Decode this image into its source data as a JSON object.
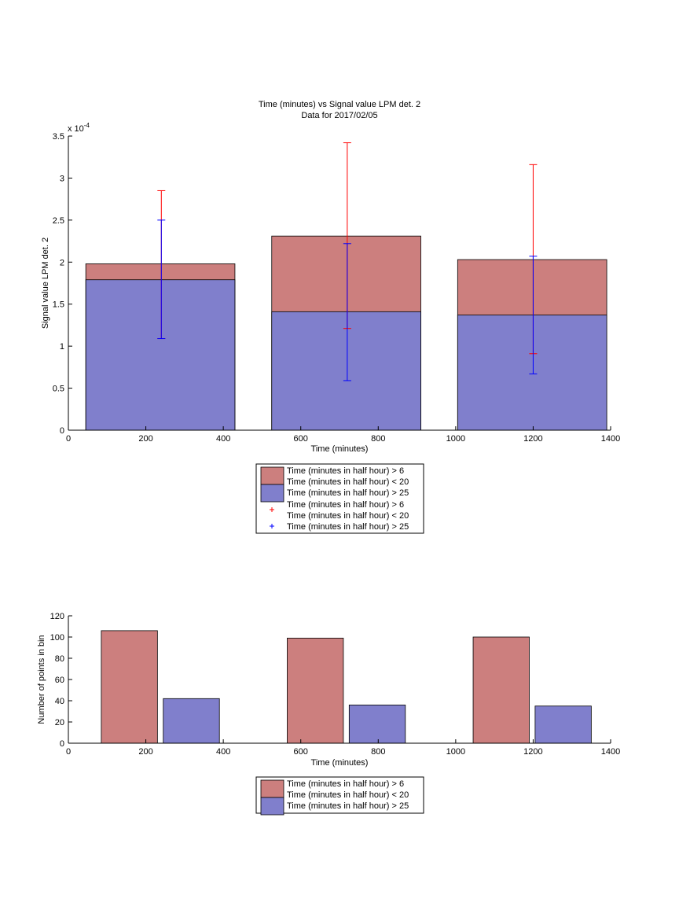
{
  "colors": {
    "red": "#cc7f7e",
    "blue": "#807fcc",
    "err_red": "#ff0000",
    "err_blue": "#0000ff"
  },
  "chart_data": [
    {
      "type": "bar",
      "stacked": true,
      "title": "Time (minutes) vs Signal value LPM det. 2",
      "subtitle": "Data for 2017/02/05",
      "xlabel": "Time (minutes)",
      "ylabel": "Signal value LPM det. 2",
      "y_exponent_label": "x 10",
      "y_exponent_power": "-4",
      "xlim": [
        0,
        1400
      ],
      "ylim": [
        0,
        3.5
      ],
      "y_scale_factor": 0.0001,
      "xticks": [
        "0",
        "200",
        "400",
        "600",
        "800",
        "1000",
        "1200",
        "1400"
      ],
      "yticks": [
        "0",
        "0.5",
        "1",
        "1.5",
        "2",
        "2.5",
        "3",
        "3.5"
      ],
      "grid": false,
      "legend_position": "below",
      "bars": [
        {
          "x_from": 45,
          "x_to": 430,
          "total": 1.98,
          "lower": 1.79
        },
        {
          "x_from": 525,
          "x_to": 910,
          "total": 2.31,
          "lower": 1.41
        },
        {
          "x_from": 1005,
          "x_to": 1390,
          "total": 2.03,
          "lower": 1.37
        }
      ],
      "errorbars": [
        {
          "name": "Time (minutes in half hour) > 6\nTime (minutes in half hour) < 20",
          "color": "red",
          "points": [
            {
              "x": 240,
              "y": 1.98,
              "low": 1.09,
              "high": 2.85
            },
            {
              "x": 720,
              "y": 2.31,
              "low": 1.21,
              "high": 3.42
            },
            {
              "x": 1200,
              "y": 2.03,
              "low": 0.91,
              "high": 3.16
            }
          ]
        },
        {
          "name": "Time (minutes in half hour) > 25",
          "color": "blue",
          "points": [
            {
              "x": 240,
              "y": 1.79,
              "low": 1.09,
              "high": 2.5
            },
            {
              "x": 720,
              "y": 1.41,
              "low": 0.59,
              "high": 2.22
            },
            {
              "x": 1200,
              "y": 1.37,
              "low": 0.67,
              "high": 2.07
            }
          ]
        }
      ],
      "legend": [
        "Time (minutes in half hour) > 6",
        "Time (minutes in half hour) < 20",
        "Time (minutes in half hour) > 25",
        "Time (minutes in half hour) > 6",
        "Time (minutes in half hour) < 20",
        "Time (minutes in half hour) > 25"
      ]
    },
    {
      "type": "bar",
      "title": "",
      "xlabel": "Time (minutes)",
      "ylabel": "Number of points in bin",
      "xlim": [
        0,
        1400
      ],
      "ylim": [
        0,
        120
      ],
      "xticks": [
        "0",
        "200",
        "400",
        "600",
        "800",
        "1000",
        "1200",
        "1400"
      ],
      "yticks": [
        "0",
        "20",
        "40",
        "60",
        "80",
        "100",
        "120"
      ],
      "grid": false,
      "legend_position": "below",
      "series": [
        {
          "name": "Time (minutes in half hour) > 6\nTime (minutes in half hour) < 20",
          "color": "red",
          "bars": [
            {
              "x_from": 85,
              "x_to": 230,
              "value": 106
            },
            {
              "x_from": 565,
              "x_to": 710,
              "value": 99
            },
            {
              "x_from": 1045,
              "x_to": 1190,
              "value": 100
            }
          ]
        },
        {
          "name": "Time (minutes in half hour) > 25",
          "color": "blue",
          "bars": [
            {
              "x_from": 245,
              "x_to": 390,
              "value": 42
            },
            {
              "x_from": 725,
              "x_to": 870,
              "value": 36
            },
            {
              "x_from": 1205,
              "x_to": 1350,
              "value": 35
            }
          ]
        }
      ],
      "legend": [
        "Time (minutes in half hour) > 6",
        "Time (minutes in half hour) < 20",
        "Time (minutes in half hour) > 25"
      ]
    }
  ]
}
